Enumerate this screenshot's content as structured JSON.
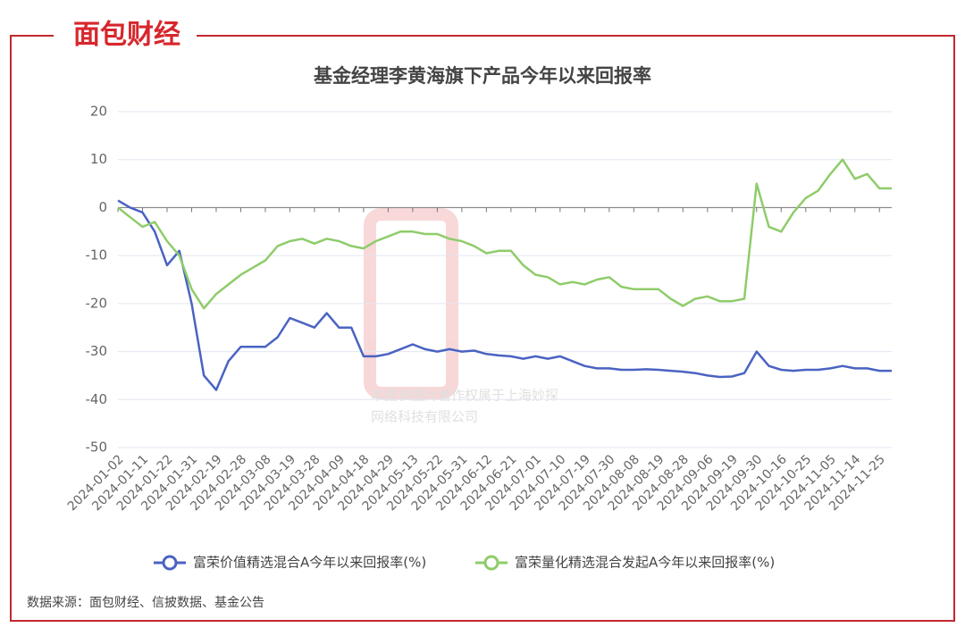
{
  "brand": "面包财经",
  "watermark": [
    "本图表图片著作权属于上海妙探",
    "网络科技有限公司"
  ],
  "source": "数据来源：面包财经、信披数据、基金公告",
  "chart_data": {
    "type": "line",
    "title": "基金经理李黄海旗下产品今年以来回报率",
    "categories": [
      "2024-01-02",
      null,
      "2024-01-11",
      null,
      "2024-01-22",
      null,
      "2024-01-31",
      null,
      "2024-02-19",
      null,
      "2024-02-28",
      null,
      "2024-03-08",
      null,
      "2024-03-19",
      null,
      "2024-03-28",
      null,
      "2024-04-09",
      null,
      "2024-04-18",
      null,
      "2024-04-29",
      null,
      "2024-05-13",
      null,
      "2024-05-22",
      null,
      "2024-05-31",
      null,
      "2024-06-12",
      null,
      "2024-06-21",
      null,
      "2024-07-01",
      null,
      "2024-07-10",
      null,
      "2024-07-19",
      null,
      "2024-07-30",
      null,
      "2024-08-08",
      null,
      "2024-08-19",
      null,
      "2024-08-28",
      null,
      "2024-09-06",
      null,
      "2024-09-19",
      null,
      "2024-09-30",
      null,
      "2024-10-16",
      null,
      "2024-10-25",
      null,
      "2024-11-05",
      null,
      "2024-11-14",
      null,
      "2024-11-25",
      null
    ],
    "series": [
      {
        "name": "富荣价值精选混合A今年以来回报率(%)",
        "color": "#4a63c2",
        "values": [
          1.5,
          0,
          -1,
          -5,
          -12,
          -9,
          -20,
          -35,
          -38,
          -32,
          -29,
          -29,
          -29,
          -27,
          -23,
          -24,
          -25,
          -22,
          -25,
          -25,
          -31,
          -31,
          -30.5,
          -29.5,
          -28.5,
          -29.5,
          -30,
          -29.5,
          -30,
          -29.8,
          -30.5,
          -30.8,
          -31,
          -31.5,
          -31,
          -31.5,
          -31,
          -32,
          -33,
          -33.5,
          -33.5,
          -33.8,
          -33.8,
          -33.7,
          -33.8,
          -34,
          -34.2,
          -34.5,
          -35,
          -35.3,
          -35.2,
          -34.5,
          -30,
          -33,
          -33.8,
          -34,
          -33.8,
          -33.8,
          -33.5,
          -33,
          -33.5,
          -33.5,
          -34,
          -34
        ]
      },
      {
        "name": "富荣量化精选混合发起A今年以来回报率(%)",
        "color": "#8fcc6a",
        "values": [
          0,
          -2,
          -4,
          -3,
          -7,
          -10,
          -17,
          -21,
          -18,
          -16,
          -14,
          -12.5,
          -11,
          -8,
          -7,
          -6.5,
          -7.5,
          -6.5,
          -7,
          -8,
          -8.5,
          -7,
          -6,
          -5,
          -5,
          -5.5,
          -5.5,
          -6.5,
          -7,
          -8,
          -9.5,
          -9,
          -9,
          -12,
          -14,
          -14.5,
          -16,
          -15.5,
          -16,
          -15,
          -14.5,
          -16.5,
          -17,
          -17,
          -17,
          -19,
          -20.5,
          -19,
          -18.5,
          -19.5,
          -19.5,
          -19,
          5,
          -4,
          -5,
          -1,
          2,
          3.5,
          7,
          10,
          6,
          7,
          4,
          4
        ]
      }
    ],
    "ylim": [
      -50,
      20
    ],
    "yticks": [
      -50,
      -40,
      -30,
      -20,
      -10,
      0,
      10,
      20
    ],
    "grid": true
  }
}
